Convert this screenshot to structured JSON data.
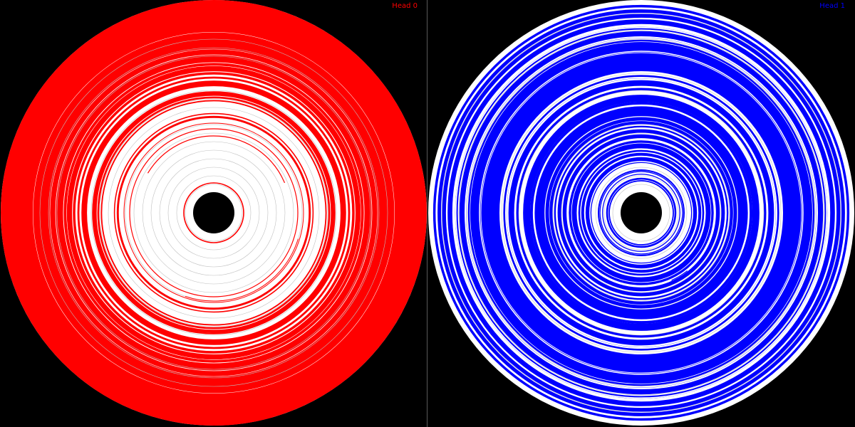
{
  "heads": [
    {
      "label": "Head 0",
      "color": "#ff0000",
      "background_color": "#ffffff",
      "hub_color": "#000000",
      "guide_ring_color": "#c0c0c0"
    },
    {
      "label": "Head 1",
      "color": "#0000ff",
      "background_color": "#ffffff",
      "hub_color": "#000000",
      "guide_ring_color": "#c0c0c0"
    }
  ]
}
